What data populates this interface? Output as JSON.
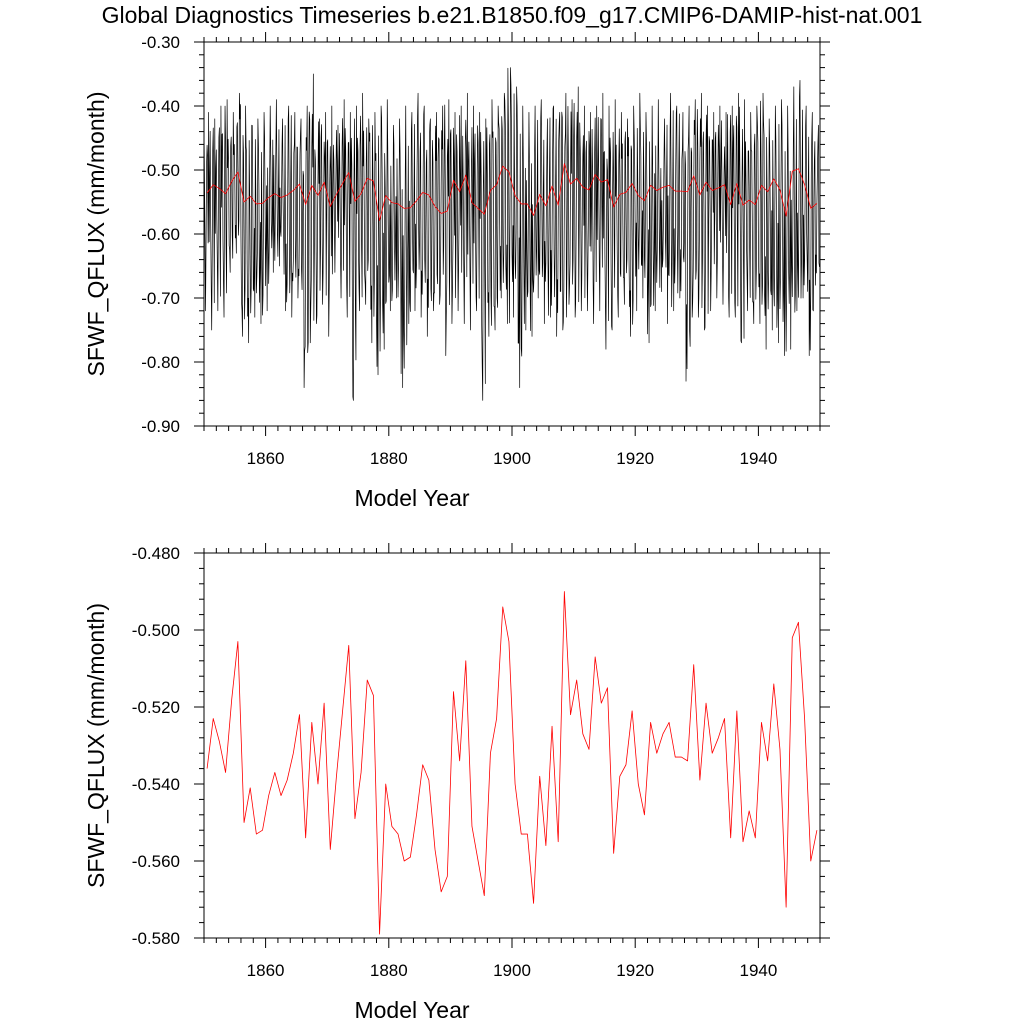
{
  "title": "Global Diagnostics Timeseries b.e21.B1850.f09_g17.CMIP6-DAMIP-hist-nat.001",
  "chart_data": [
    {
      "type": "line",
      "xlabel": "Model Year",
      "ylabel": "SFWF_QFLUX (mm/month)",
      "xlim": [
        1850,
        1950
      ],
      "ylim": [
        -0.9,
        -0.3
      ],
      "xticks": [
        1860,
        1880,
        1900,
        1920,
        1940
      ],
      "yticks": [
        -0.9,
        -0.8,
        -0.7,
        -0.6,
        -0.5,
        -0.4,
        -0.3
      ],
      "ytick_labels": [
        "-0.90",
        "-0.80",
        "-0.70",
        "-0.60",
        "-0.50",
        "-0.40",
        "-0.30"
      ],
      "grid": false,
      "series": [
        {
          "color": "#000000",
          "note_resolution": "monthly",
          "annual_low": [
            -0.72,
            -0.75,
            -0.72,
            -0.73,
            -0.66,
            -0.63,
            -0.76,
            -0.77,
            -0.73,
            -0.74,
            -0.72,
            -0.66,
            -0.65,
            -0.72,
            -0.73,
            -0.7,
            -0.84,
            -0.77,
            -0.74,
            -0.71,
            -0.76,
            -0.66,
            -0.7,
            -0.73,
            -0.86,
            -0.72,
            -0.71,
            -0.77,
            -0.82,
            -0.78,
            -0.72,
            -0.7,
            -0.84,
            -0.74,
            -0.72,
            -0.73,
            -0.76,
            -0.72,
            -0.71,
            -0.79,
            -0.74,
            -0.72,
            -0.74,
            -0.75,
            -0.72,
            -0.86,
            -0.76,
            -0.75,
            -0.7,
            -0.74,
            -0.73,
            -0.84,
            -0.75,
            -0.76,
            -0.7,
            -0.74,
            -0.73,
            -0.76,
            -0.75,
            -0.71,
            -0.73,
            -0.72,
            -0.72,
            -0.74,
            -0.72,
            -0.78,
            -0.75,
            -0.73,
            -0.71,
            -0.76,
            -0.72,
            -0.7,
            -0.77,
            -0.72,
            -0.69,
            -0.74,
            -0.72,
            -0.7,
            -0.83,
            -0.73,
            -0.73,
            -0.75,
            -0.72,
            -0.7,
            -0.71,
            -0.73,
            -0.73,
            -0.77,
            -0.72,
            -0.74,
            -0.74,
            -0.78,
            -0.75,
            -0.77,
            -0.79,
            -0.78,
            -0.72,
            -0.7,
            -0.79,
            -0.68
          ],
          "annual_high": [
            -0.41,
            -0.42,
            -0.4,
            -0.39,
            -0.41,
            -0.38,
            -0.4,
            -0.43,
            -0.42,
            -0.41,
            -0.4,
            -0.39,
            -0.42,
            -0.4,
            -0.41,
            -0.42,
            -0.4,
            -0.35,
            -0.42,
            -0.41,
            -0.4,
            -0.43,
            -0.39,
            -0.41,
            -0.4,
            -0.38,
            -0.42,
            -0.41,
            -0.4,
            -0.39,
            -0.43,
            -0.42,
            -0.4,
            -0.41,
            -0.38,
            -0.4,
            -0.42,
            -0.41,
            -0.4,
            -0.39,
            -0.41,
            -0.4,
            -0.38,
            -0.4,
            -0.41,
            -0.42,
            -0.39,
            -0.4,
            -0.38,
            -0.34,
            -0.37,
            -0.4,
            -0.41,
            -0.4,
            -0.39,
            -0.42,
            -0.4,
            -0.41,
            -0.38,
            -0.39,
            -0.37,
            -0.4,
            -0.41,
            -0.4,
            -0.38,
            -0.4,
            -0.39,
            -0.41,
            -0.42,
            -0.4,
            -0.38,
            -0.41,
            -0.4,
            -0.39,
            -0.42,
            -0.38,
            -0.4,
            -0.41,
            -0.4,
            -0.39,
            -0.38,
            -0.4,
            -0.41,
            -0.4,
            -0.41,
            -0.4,
            -0.38,
            -0.39,
            -0.41,
            -0.4,
            -0.38,
            -0.42,
            -0.4,
            -0.39,
            -0.4,
            -0.37,
            -0.36,
            -0.4,
            -0.41,
            -0.43
          ]
        },
        {
          "color": "#ff0000",
          "note_resolution": "annual mean",
          "x": [
            1850.5,
            1851.5,
            1852.5,
            1853.5,
            1854.5,
            1855.5,
            1856.5,
            1857.5,
            1858.5,
            1859.5,
            1860.5,
            1861.5,
            1862.5,
            1863.5,
            1864.5,
            1865.5,
            1866.5,
            1867.5,
            1868.5,
            1869.5,
            1870.5,
            1871.5,
            1872.5,
            1873.5,
            1874.5,
            1875.5,
            1876.5,
            1877.5,
            1878.5,
            1879.5,
            1880.5,
            1881.5,
            1882.5,
            1883.5,
            1884.5,
            1885.5,
            1886.5,
            1887.5,
            1888.5,
            1889.5,
            1890.5,
            1891.5,
            1892.5,
            1893.5,
            1894.5,
            1895.5,
            1896.5,
            1897.5,
            1898.5,
            1899.5,
            1900.5,
            1901.5,
            1902.5,
            1903.5,
            1904.5,
            1905.5,
            1906.5,
            1907.5,
            1908.5,
            1909.5,
            1910.5,
            1911.5,
            1912.5,
            1913.5,
            1914.5,
            1915.5,
            1916.5,
            1917.5,
            1918.5,
            1919.5,
            1920.5,
            1921.5,
            1922.5,
            1923.5,
            1924.5,
            1925.5,
            1926.5,
            1927.5,
            1928.5,
            1929.5,
            1930.5,
            1931.5,
            1932.5,
            1933.5,
            1934.5,
            1935.5,
            1936.5,
            1937.5,
            1938.5,
            1939.5,
            1940.5,
            1941.5,
            1942.5,
            1943.5,
            1944.5,
            1945.5,
            1946.5,
            1947.5,
            1948.5,
            1949.5
          ],
          "values": [
            -0.536,
            -0.523,
            -0.529,
            -0.537,
            -0.518,
            -0.503,
            -0.55,
            -0.541,
            -0.553,
            -0.552,
            -0.543,
            -0.537,
            -0.543,
            -0.539,
            -0.532,
            -0.522,
            -0.554,
            -0.524,
            -0.54,
            -0.519,
            -0.557,
            -0.538,
            -0.521,
            -0.504,
            -0.549,
            -0.537,
            -0.513,
            -0.517,
            -0.579,
            -0.54,
            -0.551,
            -0.553,
            -0.56,
            -0.559,
            -0.548,
            -0.535,
            -0.539,
            -0.557,
            -0.568,
            -0.564,
            -0.516,
            -0.534,
            -0.508,
            -0.551,
            -0.56,
            -0.569,
            -0.532,
            -0.523,
            -0.494,
            -0.503,
            -0.54,
            -0.553,
            -0.553,
            -0.571,
            -0.538,
            -0.556,
            -0.525,
            -0.555,
            -0.49,
            -0.522,
            -0.513,
            -0.527,
            -0.531,
            -0.507,
            -0.519,
            -0.515,
            -0.558,
            -0.538,
            -0.535,
            -0.521,
            -0.54,
            -0.548,
            -0.524,
            -0.532,
            -0.527,
            -0.524,
            -0.533,
            -0.533,
            -0.534,
            -0.509,
            -0.539,
            -0.519,
            -0.532,
            -0.528,
            -0.523,
            -0.554,
            -0.521,
            -0.555,
            -0.547,
            -0.554,
            -0.524,
            -0.534,
            -0.514,
            -0.531,
            -0.572,
            -0.502,
            -0.498,
            -0.523,
            -0.56,
            -0.552
          ]
        }
      ]
    },
    {
      "type": "line",
      "xlabel": "Model Year",
      "ylabel": "SFWF_QFLUX (mm/month)",
      "xlim": [
        1850,
        1950
      ],
      "ylim": [
        -0.58,
        -0.48
      ],
      "xticks": [
        1860,
        1880,
        1900,
        1920,
        1940
      ],
      "yticks": [
        -0.58,
        -0.56,
        -0.54,
        -0.52,
        -0.5,
        -0.48
      ],
      "ytick_labels": [
        "-0.580",
        "-0.560",
        "-0.540",
        "-0.520",
        "-0.500",
        "-0.480"
      ],
      "grid": false,
      "series": [
        {
          "color": "#ff0000",
          "note_resolution": "annual mean",
          "x": [
            1850.5,
            1851.5,
            1852.5,
            1853.5,
            1854.5,
            1855.5,
            1856.5,
            1857.5,
            1858.5,
            1859.5,
            1860.5,
            1861.5,
            1862.5,
            1863.5,
            1864.5,
            1865.5,
            1866.5,
            1867.5,
            1868.5,
            1869.5,
            1870.5,
            1871.5,
            1872.5,
            1873.5,
            1874.5,
            1875.5,
            1876.5,
            1877.5,
            1878.5,
            1879.5,
            1880.5,
            1881.5,
            1882.5,
            1883.5,
            1884.5,
            1885.5,
            1886.5,
            1887.5,
            1888.5,
            1889.5,
            1890.5,
            1891.5,
            1892.5,
            1893.5,
            1894.5,
            1895.5,
            1896.5,
            1897.5,
            1898.5,
            1899.5,
            1900.5,
            1901.5,
            1902.5,
            1903.5,
            1904.5,
            1905.5,
            1906.5,
            1907.5,
            1908.5,
            1909.5,
            1910.5,
            1911.5,
            1912.5,
            1913.5,
            1914.5,
            1915.5,
            1916.5,
            1917.5,
            1918.5,
            1919.5,
            1920.5,
            1921.5,
            1922.5,
            1923.5,
            1924.5,
            1925.5,
            1926.5,
            1927.5,
            1928.5,
            1929.5,
            1930.5,
            1931.5,
            1932.5,
            1933.5,
            1934.5,
            1935.5,
            1936.5,
            1937.5,
            1938.5,
            1939.5,
            1940.5,
            1941.5,
            1942.5,
            1943.5,
            1944.5,
            1945.5,
            1946.5,
            1947.5,
            1948.5,
            1949.5
          ],
          "values": [
            -0.536,
            -0.523,
            -0.529,
            -0.537,
            -0.518,
            -0.503,
            -0.55,
            -0.541,
            -0.553,
            -0.552,
            -0.543,
            -0.537,
            -0.543,
            -0.539,
            -0.532,
            -0.522,
            -0.554,
            -0.524,
            -0.54,
            -0.519,
            -0.557,
            -0.538,
            -0.521,
            -0.504,
            -0.549,
            -0.537,
            -0.513,
            -0.517,
            -0.579,
            -0.54,
            -0.551,
            -0.553,
            -0.56,
            -0.559,
            -0.548,
            -0.535,
            -0.539,
            -0.557,
            -0.568,
            -0.564,
            -0.516,
            -0.534,
            -0.508,
            -0.551,
            -0.56,
            -0.569,
            -0.532,
            -0.523,
            -0.494,
            -0.503,
            -0.54,
            -0.553,
            -0.553,
            -0.571,
            -0.538,
            -0.556,
            -0.525,
            -0.555,
            -0.49,
            -0.522,
            -0.513,
            -0.527,
            -0.531,
            -0.507,
            -0.519,
            -0.515,
            -0.558,
            -0.538,
            -0.535,
            -0.521,
            -0.54,
            -0.548,
            -0.524,
            -0.532,
            -0.527,
            -0.524,
            -0.533,
            -0.533,
            -0.534,
            -0.509,
            -0.539,
            -0.519,
            -0.532,
            -0.528,
            -0.523,
            -0.554,
            -0.521,
            -0.555,
            -0.547,
            -0.554,
            -0.524,
            -0.534,
            -0.514,
            -0.531,
            -0.572,
            -0.502,
            -0.498,
            -0.523,
            -0.56,
            -0.552
          ]
        }
      ]
    }
  ]
}
